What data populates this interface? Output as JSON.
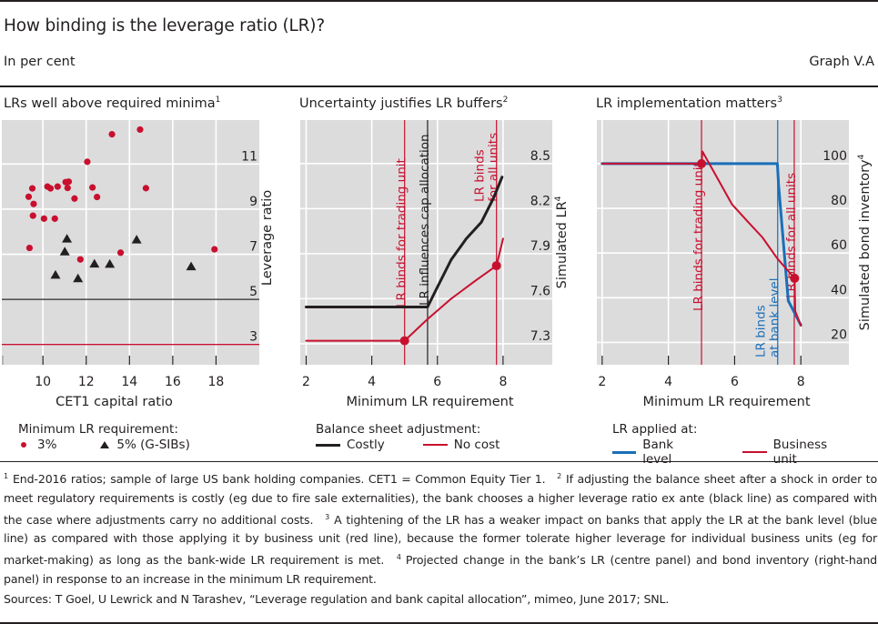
{
  "header": {
    "title": "How binding is the leverage ratio (LR)?",
    "unit": "In per cent",
    "graph_id": "Graph V.A"
  },
  "colors": {
    "red": "#c8102e",
    "blue": "#1a6fb8",
    "black": "#231f20",
    "plot_bg": "#dcdcdd",
    "grid": "#ffffff"
  },
  "panels": [
    {
      "title": "LRs well above required minima",
      "title_sup": "1",
      "legend_title": "Minimum LR requirement:",
      "legend": [
        {
          "label": "3%",
          "marker": "dot",
          "color": "#c8102e"
        },
        {
          "label": "5% (G-SIBs)",
          "marker": "triangle",
          "color": "#231f20"
        }
      ]
    },
    {
      "title": "Uncertainty justifies LR buffers",
      "title_sup": "2",
      "legend_title": "Balance sheet adjustment:",
      "legend": [
        {
          "label": "Costly",
          "marker": "line",
          "color": "#231f20"
        },
        {
          "label": "No cost",
          "marker": "line",
          "color": "#c8102e"
        }
      ]
    },
    {
      "title": "LR implementation matters",
      "title_sup": "3",
      "legend_title": "LR applied at:",
      "legend": [
        {
          "label": "Bank level",
          "marker": "line",
          "color": "#1a6fb8"
        },
        {
          "label": "Business unit",
          "marker": "line",
          "color": "#c8102e"
        }
      ]
    }
  ],
  "chart_data": [
    {
      "type": "scatter",
      "title": "LRs well above required minima",
      "xlabel": "CET1 capital ratio",
      "ylabel": "Leverage ratio",
      "xlim": [
        8.1,
        20
      ],
      "ylim": [
        2.1,
        12.95
      ],
      "xticks": [
        10,
        12,
        14,
        16,
        18
      ],
      "yticks": [
        3,
        5,
        7,
        9,
        11
      ],
      "grid": true,
      "hlines": [
        {
          "y": 5,
          "color": "#231f20"
        },
        {
          "y": 3,
          "color": "#c8102e"
        }
      ],
      "series": [
        {
          "name": "3%",
          "marker": "dot",
          "color": "#c8102e",
          "points": [
            [
              9.38,
              7.28
            ],
            [
              9.51,
              9.92
            ],
            [
              9.34,
              9.55
            ],
            [
              9.57,
              9.23
            ],
            [
              9.54,
              8.71
            ],
            [
              10.05,
              8.58
            ],
            [
              10.55,
              8.58
            ],
            [
              10.21,
              10.0
            ],
            [
              10.35,
              9.92
            ],
            [
              10.68,
              10.0
            ],
            [
              11.05,
              10.2
            ],
            [
              11.19,
              10.22
            ],
            [
              11.14,
              9.94
            ],
            [
              11.46,
              9.47
            ],
            [
              12.05,
              11.1
            ],
            [
              12.29,
              9.96
            ],
            [
              12.5,
              9.54
            ],
            [
              13.19,
              12.32
            ],
            [
              14.49,
              12.53
            ],
            [
              14.76,
              9.93
            ],
            [
              13.59,
              7.07
            ],
            [
              11.73,
              6.77
            ],
            [
              17.93,
              7.22
            ]
          ]
        },
        {
          "name": "5% (G-SIBs)",
          "marker": "triangle",
          "color": "#231f20",
          "points": [
            [
              11.11,
              7.68
            ],
            [
              11.01,
              7.11
            ],
            [
              10.58,
              6.08
            ],
            [
              11.62,
              5.92
            ],
            [
              12.38,
              6.57
            ],
            [
              13.09,
              6.56
            ],
            [
              14.33,
              7.64
            ],
            [
              16.85,
              6.45
            ]
          ]
        }
      ]
    },
    {
      "type": "line",
      "title": "Uncertainty justifies LR buffers",
      "xlabel": "Minimum LR requirement",
      "ylabel": "Simulated LR",
      "ylabel_sup": "4",
      "xlim": [
        1.82,
        9.5
      ],
      "ylim": [
        7.16,
        8.79
      ],
      "xticks": [
        2,
        4,
        6,
        8
      ],
      "yticks": [
        7.3,
        7.6,
        7.9,
        8.2,
        8.5
      ],
      "ytick_labels": [
        "7.3",
        "7.6",
        "7.9",
        "8.2",
        "8.5"
      ],
      "grid": true,
      "vlines": [
        {
          "x": 5.0,
          "color": "#c8102e",
          "label": "LR binds for trading unit"
        },
        {
          "x": 5.7,
          "color": "#231f20",
          "label": "LR influences cap allocation"
        },
        {
          "x": 7.8,
          "color": "#c8102e",
          "label": "LR binds for all units",
          "label_lines": [
            "LR binds",
            "for all units"
          ]
        }
      ],
      "series": [
        {
          "name": "Costly",
          "color": "#231f20",
          "points": [
            [
              2,
              7.545
            ],
            [
              5.7,
              7.545
            ],
            [
              5.96,
              7.66
            ],
            [
              6.42,
              7.86
            ],
            [
              6.88,
              8.0
            ],
            [
              7.34,
              8.11
            ],
            [
              7.71,
              8.27
            ],
            [
              7.97,
              8.41
            ]
          ]
        },
        {
          "name": "No cost",
          "color": "#c8102e",
          "points": [
            [
              2,
              7.32
            ],
            [
              5.0,
              7.32
            ],
            [
              5.68,
              7.46
            ],
            [
              6.42,
              7.6
            ],
            [
              7.16,
              7.72
            ],
            [
              7.8,
              7.82
            ],
            [
              8.0,
              8.0
            ]
          ],
          "markers": [
            [
              5.0,
              7.32
            ],
            [
              7.8,
              7.82
            ]
          ]
        }
      ]
    },
    {
      "type": "line",
      "title": "LR implementation matters",
      "xlabel": "Minimum LR requirement",
      "ylabel": "Simulated bond inventory",
      "ylabel_sup": "4",
      "xlim": [
        1.84,
        9.45
      ],
      "ylim": [
        10,
        119.5
      ],
      "xticks": [
        2,
        4,
        6,
        8
      ],
      "yticks": [
        20,
        40,
        60,
        80,
        100
      ],
      "ytick_labels": [
        "20",
        "40",
        "60",
        "80",
        "100"
      ],
      "grid": true,
      "vlines": [
        {
          "x": 5.0,
          "color": "#c8102e",
          "label": "LR binds for trading unit"
        },
        {
          "x": 7.3,
          "color": "#1a6fb8",
          "label": "LR binds at bank level",
          "label_lines": [
            "LR binds",
            "at bank level"
          ]
        },
        {
          "x": 7.8,
          "color": "#c8102e",
          "label": "LR binds for all units"
        }
      ],
      "series": [
        {
          "name": "Bank level",
          "color": "#1a6fb8",
          "points": [
            [
              2,
              100
            ],
            [
              7.29,
              100
            ],
            [
              7.33,
              90
            ],
            [
              7.62,
              38.6
            ],
            [
              8.0,
              27.8
            ]
          ]
        },
        {
          "name": "Business unit",
          "color": "#c8102e",
          "points": [
            [
              2,
              100
            ],
            [
              5.0,
              100
            ],
            [
              5.03,
              105.4
            ],
            [
              5.5,
              93
            ],
            [
              5.92,
              81.8
            ],
            [
              6.4,
              74
            ],
            [
              6.84,
              67
            ],
            [
              7.29,
              57.5
            ],
            [
              7.81,
              48.7
            ],
            [
              7.83,
              34
            ],
            [
              8.0,
              27.5
            ]
          ],
          "markers": [
            [
              5.0,
              100
            ],
            [
              7.81,
              48.7
            ]
          ]
        }
      ]
    }
  ],
  "footnotes": [
    {
      "num": "1",
      "text": "End-2016 ratios; sample of large US bank holding companies. CET1 = Common Equity Tier 1."
    },
    {
      "num": "2",
      "text": "If adjusting the balance sheet after a shock in order to meet regulatory requirements is costly (eg due to fire sale externalities), the bank chooses a higher leverage ratio ex ante (black line) as compared with the case where adjustments carry no additional costs."
    },
    {
      "num": "3",
      "text": "A tightening of the LR has a weaker impact on banks that apply the LR at the bank level (blue line) as compared with those applying it by business unit (red line), because the former tolerate higher leverage for individual business units (eg for market-making) as long as the bank-wide LR requirement is met."
    },
    {
      "num": "4",
      "text": "Projected change in the bank’s LR (centre panel) and bond inventory (right-hand panel) in response to an increase in the minimum LR requirement."
    }
  ],
  "sources": "Sources: T Goel, U Lewrick and N Tarashev, “Leverage regulation and bank capital allocation”, mimeo, June 2017; SNL."
}
